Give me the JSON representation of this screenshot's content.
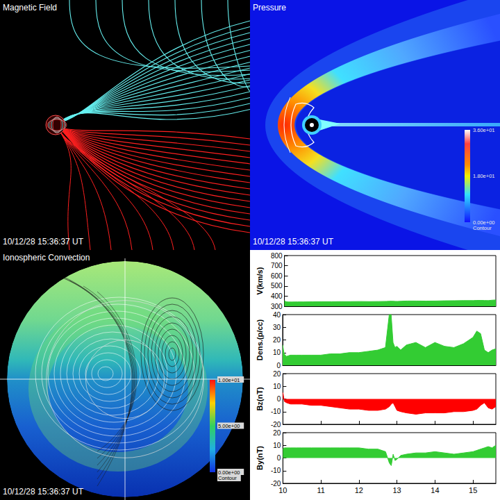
{
  "panels": [
    {
      "title": "Magnetic Field",
      "timestamp": "10/12/28 15:36:37 UT"
    },
    {
      "title": "Pressure",
      "timestamp": "10/12/28 15:36:37 UT",
      "colorbar": {
        "range": [
          0,
          36
        ],
        "ticks": [
          {
            "value": 36,
            "label": "3.60e+01"
          },
          {
            "value": 18,
            "label": "1.80e+01"
          },
          {
            "value": 0,
            "label": "0.00e+00"
          }
        ],
        "label": "Contour"
      }
    },
    {
      "title": "Ionospheric Convection",
      "timestamp": "10/12/28 15:36:37 UT",
      "colorbar": {
        "range": [
          0,
          10
        ],
        "ticks": [
          {
            "value": 10,
            "label": "1.00e+01"
          },
          {
            "value": 5,
            "label": "5.00e+00"
          },
          {
            "value": 0,
            "label": "0.00e+00"
          }
        ],
        "label": "Contour"
      }
    }
  ],
  "chart_data": [
    {
      "type": "area",
      "ylabel": "V(km/s)",
      "color": "#33cc33",
      "tick_labels": "y",
      "x": [
        10.0,
        10.04,
        10.1,
        10.2,
        10.35,
        10.5,
        10.75,
        11.0,
        11.25,
        11.5,
        11.75,
        12.0,
        12.25,
        12.5,
        12.7,
        12.8,
        12.85,
        12.9,
        12.95,
        13.0,
        13.1,
        13.25,
        13.5,
        13.75,
        14.0,
        14.25,
        14.5,
        14.75,
        15.0,
        15.1,
        15.2,
        15.3,
        15.4,
        15.5,
        15.6
      ],
      "values": [
        355,
        345,
        342,
        342,
        343,
        343,
        344,
        345,
        345,
        346,
        346,
        347,
        346,
        347,
        348,
        350,
        350,
        349,
        348,
        348,
        350,
        352,
        352,
        351,
        352,
        354,
        355,
        356,
        356,
        358,
        358,
        357,
        356,
        360,
        362
      ],
      "xlim": [
        10,
        15.6
      ],
      "xticks": [
        10,
        11,
        12,
        13,
        14,
        15
      ],
      "ylim": [
        300,
        800
      ],
      "yticks": [
        300,
        400,
        500,
        600,
        700,
        800
      ]
    },
    {
      "type": "area",
      "ylabel": "Dens.(p/cc)",
      "color": "#33cc33",
      "tick_labels": "y",
      "x": [
        10.0,
        10.04,
        10.1,
        10.2,
        10.35,
        10.5,
        10.75,
        11.0,
        11.25,
        11.5,
        11.75,
        12.0,
        12.25,
        12.5,
        12.7,
        12.8,
        12.85,
        12.9,
        12.95,
        13.0,
        13.1,
        13.25,
        13.5,
        13.75,
        14.0,
        14.25,
        14.5,
        14.75,
        15.0,
        15.1,
        15.2,
        15.3,
        15.4,
        15.5,
        15.6
      ],
      "values": [
        16,
        9,
        7,
        8,
        8,
        8,
        8,
        8,
        9,
        9,
        10,
        10,
        11,
        12,
        14,
        40,
        40,
        18,
        14,
        15,
        12,
        16,
        18,
        14,
        18,
        15,
        14,
        17,
        22,
        27,
        25,
        12,
        10,
        12,
        13
      ],
      "xlim": [
        10,
        15.6
      ],
      "xticks": [
        10,
        11,
        12,
        13,
        14,
        15
      ],
      "ylim": [
        0,
        40
      ],
      "yticks": [
        0,
        10,
        20,
        30,
        40
      ]
    },
    {
      "type": "area",
      "ylabel": "Bz(nT)",
      "color": "#ff0000",
      "tick_labels": "y",
      "x": [
        10.0,
        10.04,
        10.1,
        10.2,
        10.35,
        10.5,
        10.75,
        11.0,
        11.25,
        11.5,
        11.75,
        12.0,
        12.25,
        12.5,
        12.7,
        12.8,
        12.85,
        12.9,
        12.95,
        13.0,
        13.1,
        13.25,
        13.5,
        13.75,
        14.0,
        14.25,
        14.5,
        14.75,
        15.0,
        15.1,
        15.2,
        15.3,
        15.4,
        15.5,
        15.6
      ],
      "values": [
        5,
        -2,
        -3,
        -4,
        -4,
        -4,
        -5,
        -5,
        -6,
        -7,
        -8,
        -8,
        -9,
        -9,
        -8,
        -6,
        -4,
        -3,
        -6,
        -9,
        -10,
        -11,
        -12,
        -11,
        -11,
        -11,
        -10,
        -10,
        -9,
        -8,
        -5,
        -3,
        -7,
        -8,
        -6
      ],
      "xlim": [
        10,
        15.6
      ],
      "xticks": [
        10,
        11,
        12,
        13,
        14,
        15
      ],
      "ylim": [
        -20,
        20
      ],
      "yticks": [
        -20,
        -10,
        0,
        10,
        20
      ]
    },
    {
      "type": "area",
      "ylabel": "By(nT)",
      "color": "#33cc33",
      "x": [
        10.0,
        10.04,
        10.1,
        10.2,
        10.35,
        10.5,
        10.75,
        11.0,
        11.25,
        11.5,
        11.75,
        12.0,
        12.25,
        12.5,
        12.7,
        12.8,
        12.85,
        12.9,
        12.95,
        13.0,
        13.1,
        13.25,
        13.5,
        13.75,
        14.0,
        14.25,
        14.5,
        14.75,
        15.0,
        15.1,
        15.2,
        15.3,
        15.4,
        15.5,
        15.6
      ],
      "values": [
        7,
        8,
        8,
        8,
        8,
        8,
        8,
        8,
        8,
        8,
        8,
        8,
        7,
        7,
        5,
        -4,
        -6,
        3,
        -2,
        -1,
        2,
        3,
        4,
        4,
        5,
        4,
        3,
        4,
        5,
        6,
        7,
        8,
        9,
        8,
        10
      ],
      "xlim": [
        10,
        15.6
      ],
      "xticks": [
        10,
        11,
        12,
        13,
        14,
        15
      ],
      "ylim": [
        -20,
        20
      ],
      "yticks": [
        -20,
        -10,
        0,
        10,
        20
      ]
    }
  ]
}
